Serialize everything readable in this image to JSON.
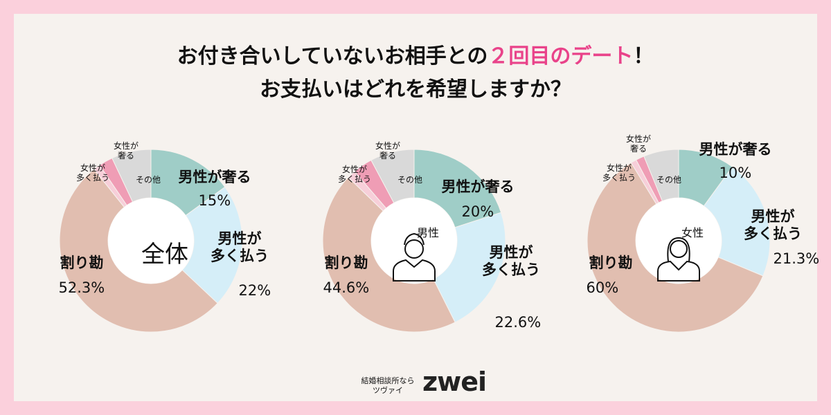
{
  "header": {
    "title_before": "お付き合いしていないお相手との",
    "title_highlight": "２回目のデート",
    "title_after": "！",
    "title_line2": "お支払いはどれを希望しますか？"
  },
  "chart_data": [
    {
      "type": "donut",
      "title": "全体",
      "categories": [
        "男性が奢る",
        "男性が\n多く払う",
        "割り勘",
        "女性が\n多く払う",
        "女性が\n奢る",
        "その他"
      ],
      "values": [
        15,
        22,
        52.3,
        1.2,
        2.5,
        7.0
      ],
      "value_labels": [
        "15%",
        "22%",
        "52.3%",
        null,
        null,
        null
      ],
      "colors": [
        "#9fcdc7",
        "#d5eef8",
        "#e1beb0",
        "#f7cfd9",
        "#ef9db5",
        "#d9d9d9"
      ]
    },
    {
      "type": "donut",
      "title": "男性",
      "categories": [
        "男性が奢る",
        "男性が\n多く払う",
        "割り勘",
        "女性が\n多く払う",
        "女性が\n奢る",
        "その他"
      ],
      "values": [
        20,
        22.6,
        44.6,
        1.5,
        3.5,
        7.8
      ],
      "value_labels": [
        "20%",
        "22.6%",
        "44.6%",
        null,
        null,
        null
      ],
      "colors": [
        "#9fcdc7",
        "#d5eef8",
        "#e1beb0",
        "#f7cfd9",
        "#ef9db5",
        "#d9d9d9"
      ]
    },
    {
      "type": "donut",
      "title": "女性",
      "categories": [
        "男性が奢る",
        "男性が\n多く払う",
        "割り勘",
        "女性が\n多く払う",
        "女性が\n奢る",
        "その他"
      ],
      "values": [
        10,
        21.3,
        60,
        1.0,
        1.5,
        6.2
      ],
      "value_labels": [
        "10%",
        "21.3%",
        "60%",
        null,
        null,
        null
      ],
      "colors": [
        "#9fcdc7",
        "#d5eef8",
        "#e1beb0",
        "#f7cfd9",
        "#ef9db5",
        "#d9d9d9"
      ]
    }
  ],
  "footer": {
    "tagline": "結婚相談所なら",
    "kana": "ツヴァイ",
    "logo": "zwei"
  }
}
